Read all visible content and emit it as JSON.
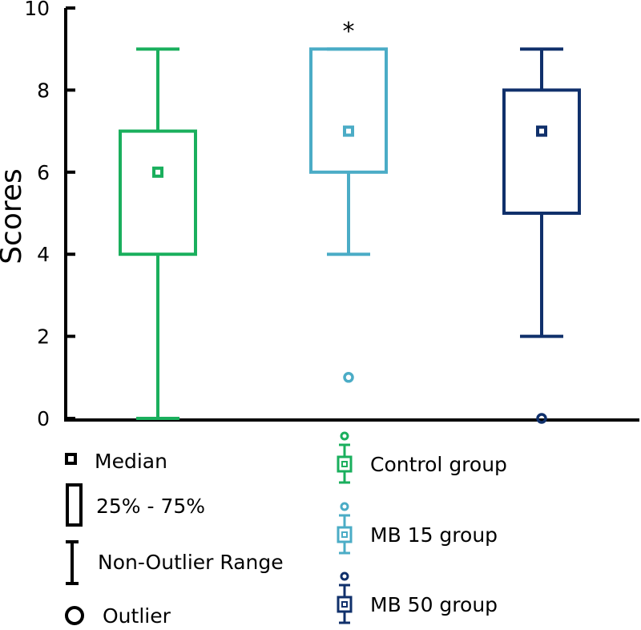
{
  "chart_data": {
    "type": "box",
    "ylabel": "Scores",
    "xlabel": "",
    "ylim": [
      0,
      10
    ],
    "yticks": [
      0,
      2,
      4,
      6,
      8,
      10
    ],
    "groups": [
      {
        "name": "Control group",
        "color": "#1aaf5d",
        "median": 6,
        "q1": 4,
        "q3": 7,
        "whisker_low": 0,
        "whisker_high": 9,
        "outliers": [],
        "annotation": ""
      },
      {
        "name": "MB 15 group",
        "color": "#4bacc6",
        "median": 7,
        "q1": 6,
        "q3": 9,
        "whisker_low": 4,
        "whisker_high": 9,
        "outliers": [
          1
        ],
        "annotation": "*"
      },
      {
        "name": "MB 50 group",
        "color": "#10306b",
        "median": 7,
        "q1": 5,
        "q3": 8,
        "whisker_low": 2,
        "whisker_high": 9,
        "outliers": [
          0
        ],
        "annotation": ""
      }
    ],
    "legend_key": {
      "median": "Median",
      "box": "25% - 75%",
      "whisker": "Non-Outlier Range",
      "outlier": "Outlier"
    }
  }
}
